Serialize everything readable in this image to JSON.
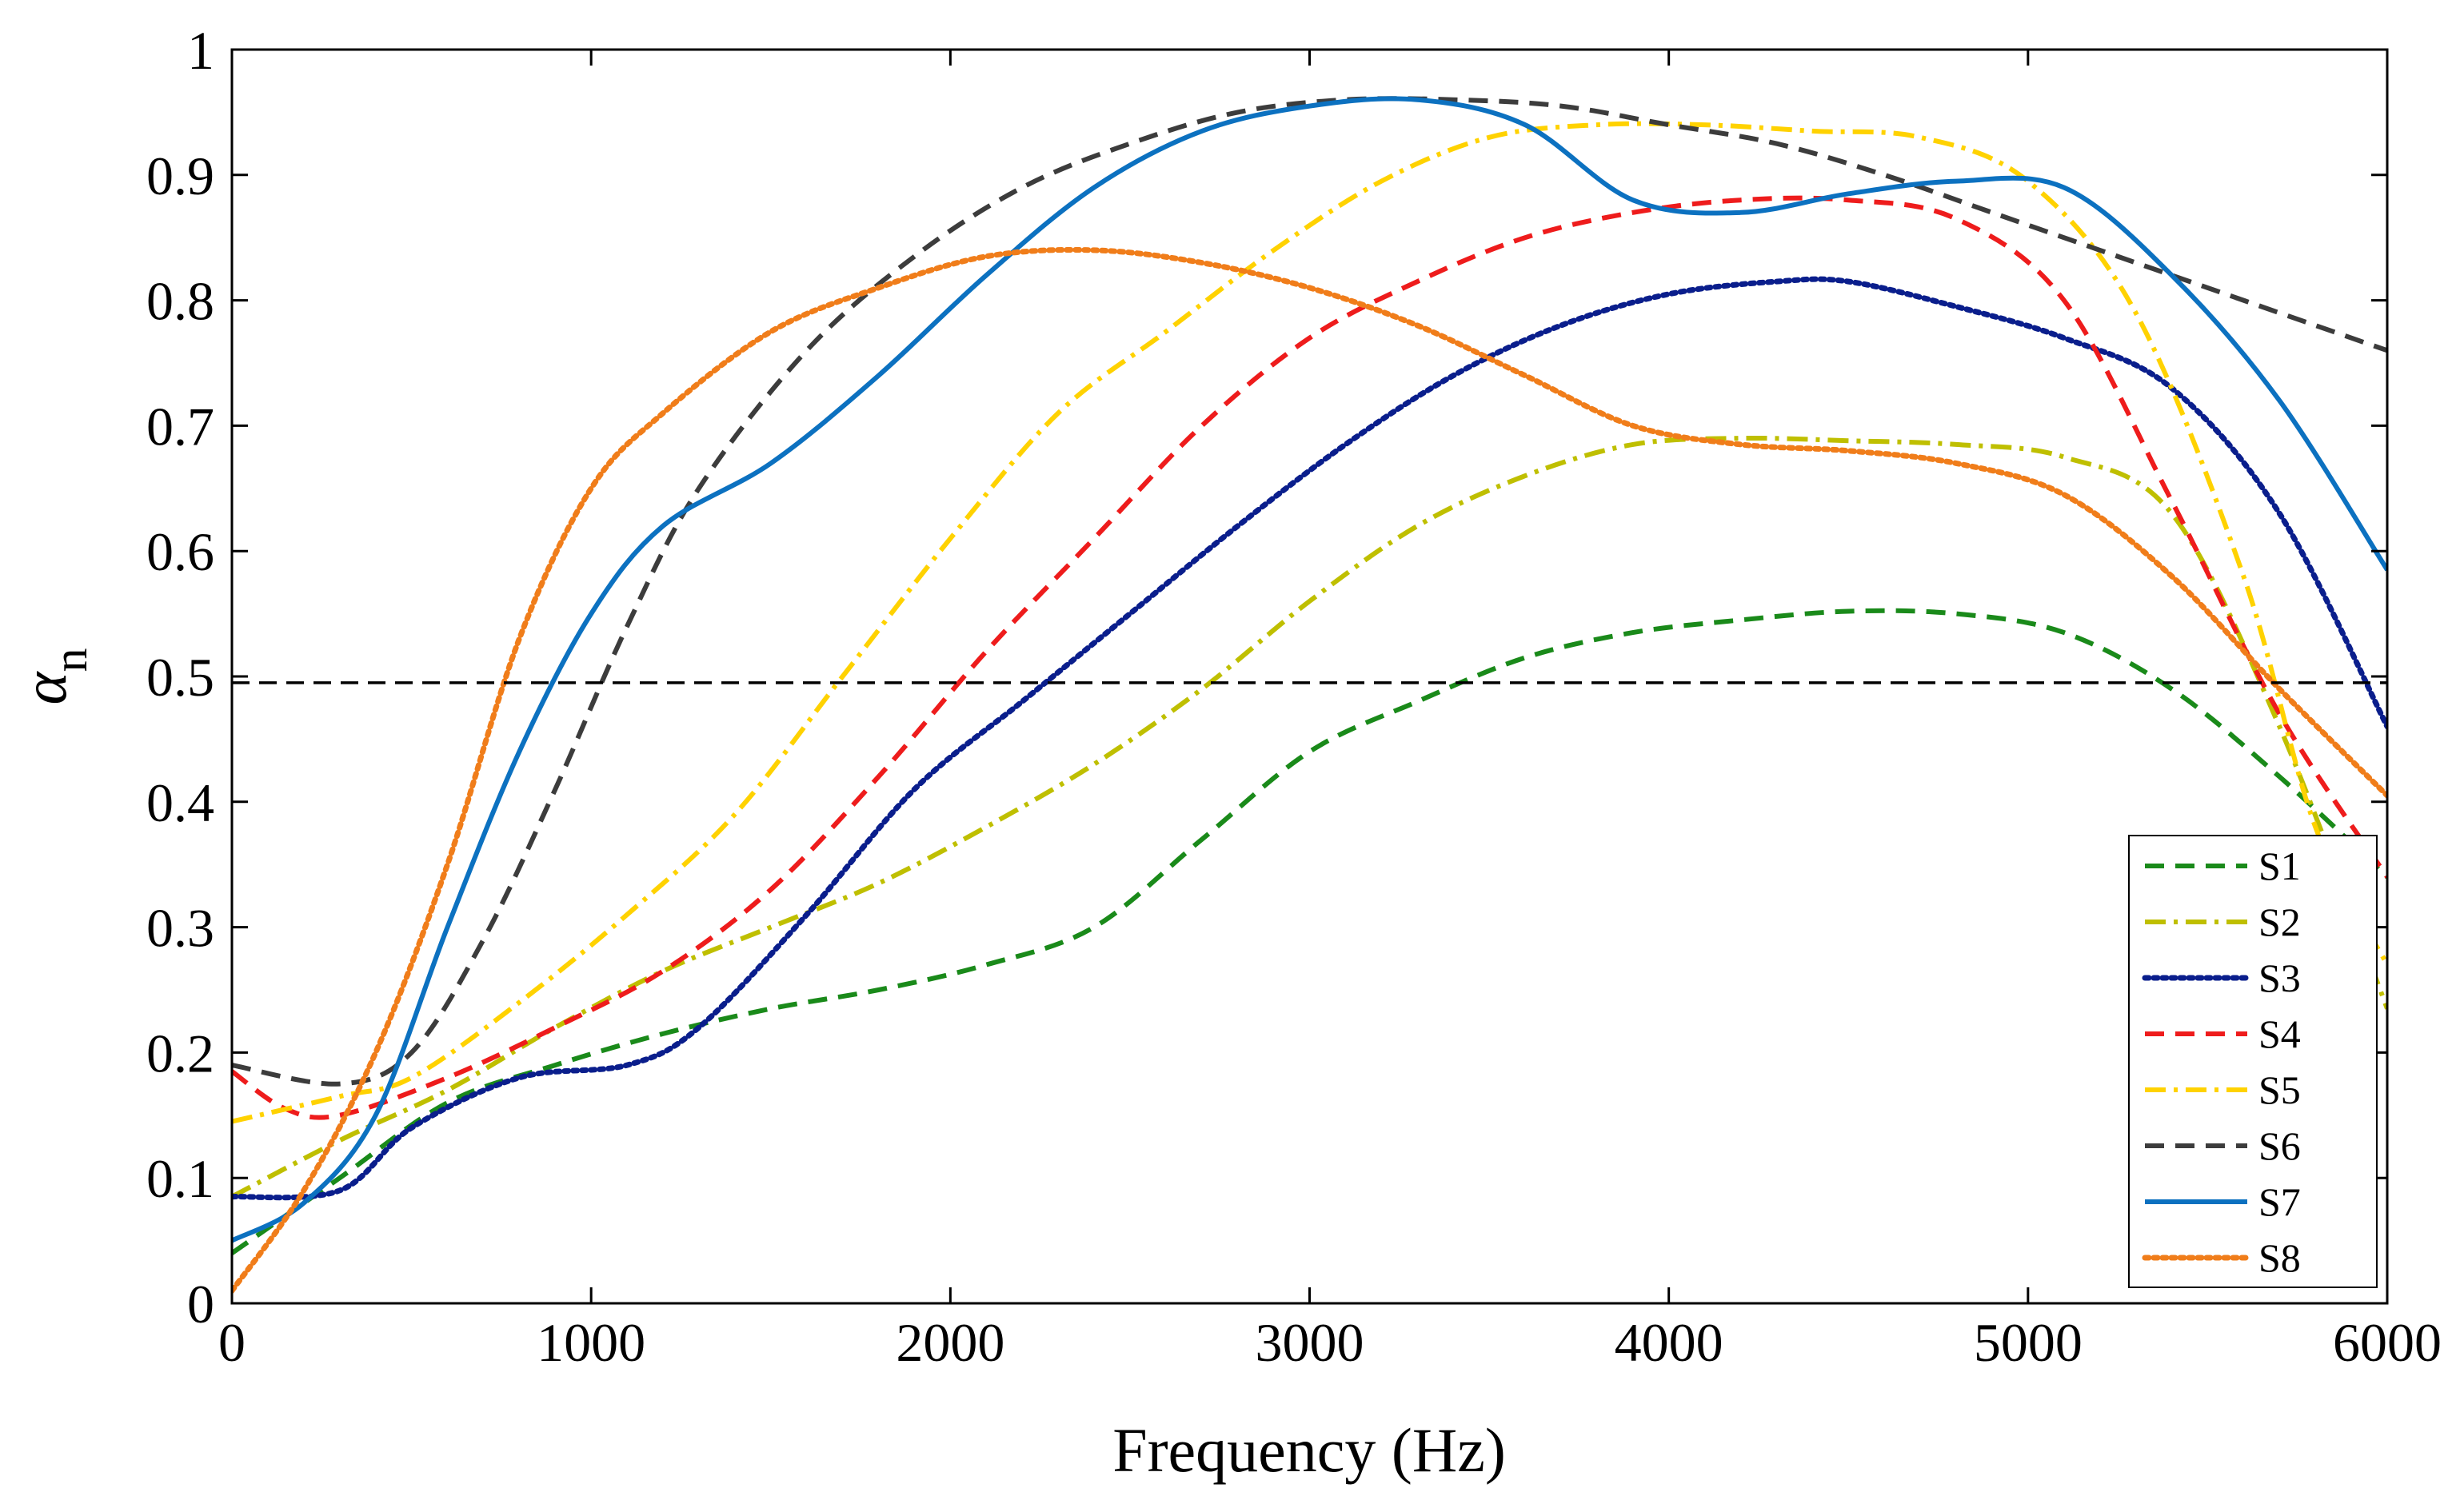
{
  "chart_data": {
    "type": "line",
    "title": "",
    "xlabel": "Frequency (Hz)",
    "ylabel_symbol": "α",
    "ylabel_subscript": "n",
    "xlim": [
      0,
      6000
    ],
    "ylim": [
      0,
      1
    ],
    "xticks": [
      0,
      1000,
      2000,
      3000,
      4000,
      5000,
      6000
    ],
    "xtick_labels": [
      "0",
      "1000",
      "2000",
      "3000",
      "4000",
      "5000",
      "6000"
    ],
    "yticks": [
      0,
      0.1,
      0.2,
      0.3,
      0.4,
      0.5,
      0.6,
      0.7,
      0.8,
      0.9,
      1
    ],
    "ytick_labels": [
      "0",
      "0.1",
      "0.2",
      "0.3",
      "0.4",
      "0.5",
      "0.6",
      "0.7",
      "0.8",
      "0.9",
      "1"
    ],
    "grid": false,
    "legend_position": "bottom-right",
    "reference_line": {
      "y": 0.495,
      "color": "#000000",
      "style": "dashed"
    },
    "series": [
      {
        "name": "S1",
        "color": "#1a8a1a",
        "style": "dashed",
        "x": [
          0,
          300,
          600,
          900,
          1200,
          1500,
          1800,
          2100,
          2400,
          2700,
          3000,
          3300,
          3600,
          3900,
          4200,
          4500,
          4800,
          5100,
          5400,
          5700,
          6000
        ],
        "y": [
          0.04,
          0.1,
          0.16,
          0.19,
          0.215,
          0.235,
          0.25,
          0.27,
          0.3,
          0.37,
          0.44,
          0.48,
          0.515,
          0.535,
          0.545,
          0.552,
          0.55,
          0.535,
          0.49,
          0.42,
          0.34
        ]
      },
      {
        "name": "S2",
        "color": "#bfbf00",
        "style": "dashdot",
        "x": [
          0,
          300,
          600,
          900,
          1200,
          1500,
          1800,
          2100,
          2400,
          2700,
          3000,
          3300,
          3600,
          3900,
          4200,
          4500,
          4800,
          5100,
          5400,
          5700,
          6000
        ],
        "y": [
          0.085,
          0.13,
          0.17,
          0.22,
          0.265,
          0.3,
          0.335,
          0.38,
          0.43,
          0.49,
          0.56,
          0.62,
          0.66,
          0.685,
          0.69,
          0.688,
          0.685,
          0.675,
          0.63,
          0.46,
          0.235
        ]
      },
      {
        "name": "S3",
        "color": "#0a1e8c",
        "style": "dotted",
        "x": [
          0,
          300,
          500,
          800,
          1100,
          1300,
          1600,
          1900,
          2200,
          2500,
          2800,
          3100,
          3400,
          3700,
          4000,
          4300,
          4500,
          4800,
          5100,
          5400,
          5700,
          6000
        ],
        "y": [
          0.085,
          0.09,
          0.14,
          0.18,
          0.19,
          0.22,
          0.31,
          0.41,
          0.48,
          0.55,
          0.62,
          0.685,
          0.74,
          0.78,
          0.805,
          0.815,
          0.815,
          0.795,
          0.77,
          0.73,
          0.63,
          0.46
        ]
      },
      {
        "name": "S4",
        "color": "#ee1c1c",
        "style": "dashed",
        "x": [
          0,
          150,
          300,
          600,
          900,
          1200,
          1500,
          1800,
          2100,
          2400,
          2700,
          3000,
          3300,
          3600,
          3900,
          4200,
          4500,
          4800,
          5100,
          5400,
          5700,
          6000
        ],
        "y": [
          0.185,
          0.155,
          0.15,
          0.18,
          0.22,
          0.265,
          0.33,
          0.42,
          0.52,
          0.61,
          0.7,
          0.77,
          0.815,
          0.85,
          0.87,
          0.88,
          0.88,
          0.865,
          0.8,
          0.64,
          0.47,
          0.34
        ]
      },
      {
        "name": "S5",
        "color": "#ffd200",
        "style": "dashdot",
        "x": [
          0,
          300,
          500,
          800,
          1100,
          1400,
          1700,
          2000,
          2300,
          2600,
          2900,
          3200,
          3500,
          3800,
          4100,
          4400,
          4700,
          5000,
          5300,
          5600,
          5800,
          6000
        ],
        "y": [
          0.145,
          0.165,
          0.18,
          0.24,
          0.31,
          0.39,
          0.5,
          0.61,
          0.71,
          0.775,
          0.84,
          0.895,
          0.93,
          0.94,
          0.94,
          0.935,
          0.93,
          0.895,
          0.79,
          0.58,
          0.38,
          0.27
        ]
      },
      {
        "name": "S6",
        "color": "#3c3c3c",
        "style": "dashed",
        "x": [
          0,
          300,
          500,
          700,
          900,
          1100,
          1300,
          1600,
          1900,
          2200,
          2500,
          2800,
          3100,
          3400,
          3700,
          4000,
          4300,
          4600,
          4900,
          5200,
          5500,
          5800,
          6000
        ],
        "y": [
          0.19,
          0.175,
          0.2,
          0.29,
          0.41,
          0.54,
          0.65,
          0.76,
          0.835,
          0.89,
          0.925,
          0.95,
          0.96,
          0.96,
          0.955,
          0.94,
          0.925,
          0.9,
          0.87,
          0.84,
          0.81,
          0.78,
          0.76
        ]
      },
      {
        "name": "S7",
        "color": "#0c71c0",
        "style": "solid",
        "x": [
          0,
          200,
          400,
          600,
          800,
          1000,
          1200,
          1500,
          1800,
          2100,
          2400,
          2700,
          3000,
          3300,
          3600,
          3900,
          4200,
          4500,
          4800,
          5100,
          5400,
          5700,
          6000
        ],
        "y": [
          0.05,
          0.08,
          0.15,
          0.3,
          0.44,
          0.55,
          0.62,
          0.67,
          0.74,
          0.82,
          0.89,
          0.935,
          0.955,
          0.96,
          0.94,
          0.88,
          0.87,
          0.885,
          0.895,
          0.89,
          0.82,
          0.72,
          0.585
        ]
      },
      {
        "name": "S8",
        "color": "#f07d1a",
        "style": "dotted",
        "x": [
          0,
          200,
          400,
          600,
          800,
          1000,
          1200,
          1500,
          1800,
          2100,
          2400,
          2700,
          3000,
          3300,
          3600,
          3900,
          4200,
          4500,
          4800,
          5100,
          5400,
          5700,
          6000
        ],
        "y": [
          0.01,
          0.09,
          0.2,
          0.35,
          0.53,
          0.65,
          0.71,
          0.775,
          0.81,
          0.835,
          0.84,
          0.83,
          0.81,
          0.78,
          0.74,
          0.7,
          0.685,
          0.68,
          0.67,
          0.645,
          0.58,
          0.49,
          0.405
        ]
      }
    ]
  }
}
